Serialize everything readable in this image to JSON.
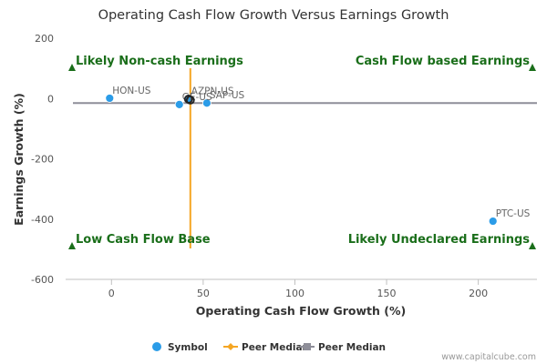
{
  "chart_data": {
    "type": "scatter",
    "title": "Operating Cash Flow Growth Versus Earnings Growth",
    "xlabel": "Operating Cash Flow Growth (%)",
    "ylabel": "Earnings Growth (%)",
    "xlim": [
      -25,
      232
    ],
    "ylim": [
      -600,
      200
    ],
    "x_ticks": [
      0,
      50,
      100,
      150,
      200
    ],
    "y_ticks": [
      200,
      0,
      -200,
      -400,
      -600
    ],
    "points": [
      {
        "label": "HON-US",
        "x": -1,
        "y": 1,
        "label_pos": "above-right"
      },
      {
        "label": "AZPN-US",
        "x": 42,
        "y": 0,
        "label_pos": "above-right"
      },
      {
        "label": "PTC-US",
        "x": 208,
        "y": -407,
        "label_pos": "above-right"
      },
      {
        "label": "SAP-US",
        "x": 52,
        "y": -15,
        "label_pos": "above-right"
      },
      {
        "label": "GE-US",
        "x": 37,
        "y": -20,
        "label_pos": "above-right"
      },
      {
        "label": "",
        "x": 42,
        "y": -2,
        "label_pos": "none"
      },
      {
        "label": "",
        "x": 43,
        "y": -5,
        "label_pos": "none"
      }
    ],
    "peer_median_x": 43,
    "peer_median_y": -15,
    "quadrant_labels": [
      {
        "text": "Likely Non-cash Earnings",
        "position": "top-left"
      },
      {
        "text": "Cash Flow based Earnings",
        "position": "top-right"
      },
      {
        "text": "Low Cash Flow Base",
        "position": "bottom-left"
      },
      {
        "text": "Likely Undeclared Earnings",
        "position": "bottom-right"
      }
    ],
    "legend": [
      {
        "name": "Symbol",
        "marker": "circle",
        "color": "#2b9ce8"
      },
      {
        "name": "Peer Median",
        "marker": "diamond",
        "color": "#f5a623"
      },
      {
        "name": "Peer Median",
        "marker": "square",
        "color": "#8e8e99"
      }
    ],
    "colors": {
      "point": "#2b9ce8",
      "median_x_line": "#f5a623",
      "median_y_line": "#8e8e99",
      "quadrant_text": "#1a6e1a",
      "quadrant_marker": "#1a6e1a"
    },
    "credit": "www.capitalcube.com"
  }
}
